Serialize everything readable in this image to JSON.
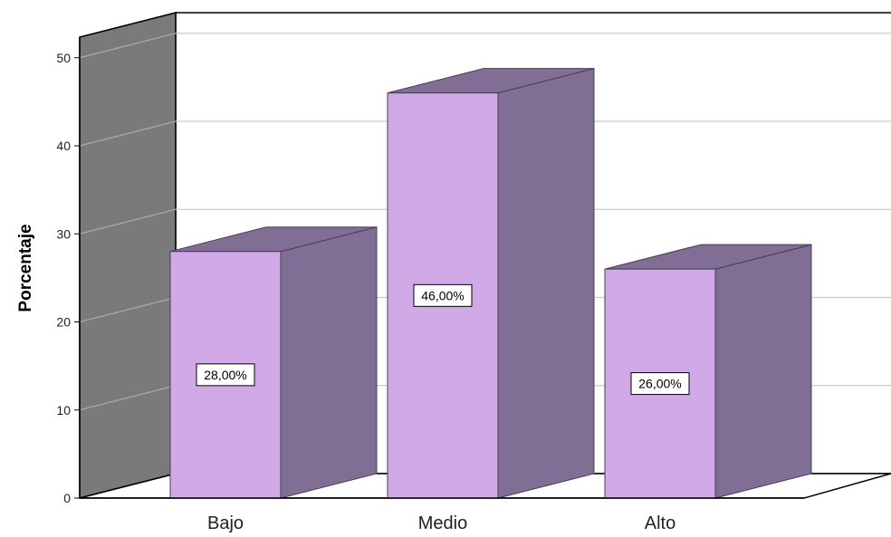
{
  "chart_data": {
    "type": "bar",
    "three_d": true,
    "categories": [
      "Bajo",
      "Medio",
      "Alto"
    ],
    "values": [
      28,
      46,
      26
    ],
    "data_labels": [
      "28,00%",
      "46,00%",
      "26,00%"
    ],
    "xlabel": "",
    "ylabel": "Porcentaje",
    "ylim": [
      0,
      50
    ],
    "yticks": [
      "0",
      "10",
      "20",
      "30",
      "40",
      "50"
    ],
    "grid": true,
    "colors": {
      "bar_front": "#d1a9e6",
      "bar_side": "#806e94",
      "bar_top": "#806e94",
      "back_wall": "#ffffff",
      "side_wall": "#7a7a7a",
      "grid_line": "#cccccc",
      "label_box": "#ffffff",
      "edge": "#000000"
    }
  }
}
